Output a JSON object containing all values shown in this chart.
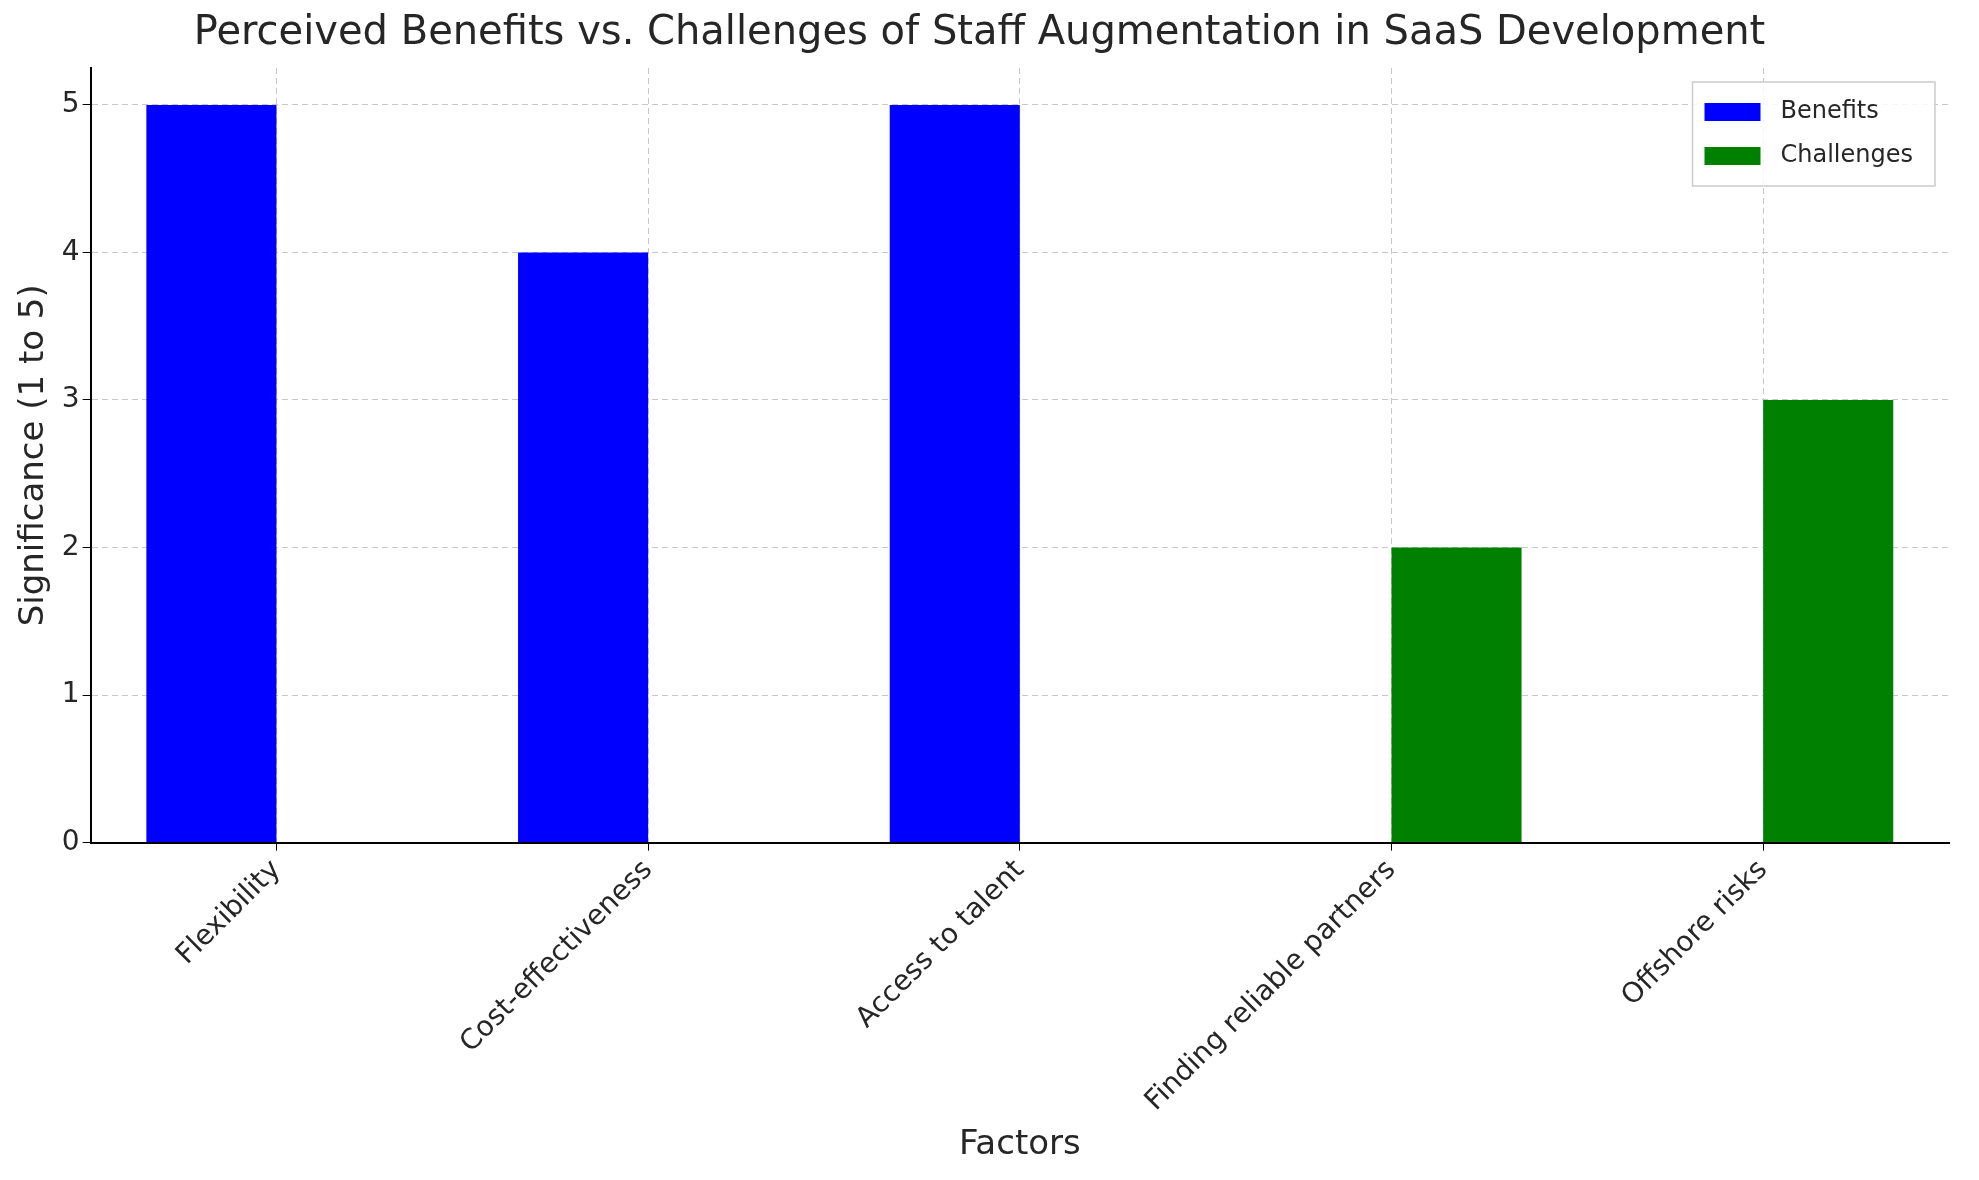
{
  "chart_data": {
    "type": "bar",
    "title": "Perceived Benefits vs. Challenges of Staff Augmentation in SaaS Development",
    "xlabel": "Factors",
    "ylabel": "Significance (1 to 5)",
    "categories": [
      "Flexibility",
      "Cost-effectiveness",
      "Access to talent",
      "Finding reliable partners",
      "Offshore risks"
    ],
    "series": [
      {
        "name": "Benefits",
        "color": "#0000ff",
        "values": [
          5,
          4,
          5,
          null,
          null
        ]
      },
      {
        "name": "Challenges",
        "color": "#008000",
        "values": [
          null,
          null,
          null,
          2,
          3
        ]
      }
    ],
    "ylim": [
      0,
      5.25
    ],
    "yticks": [
      0,
      1,
      2,
      3,
      4,
      5
    ],
    "grid": true,
    "legend": "top right"
  }
}
